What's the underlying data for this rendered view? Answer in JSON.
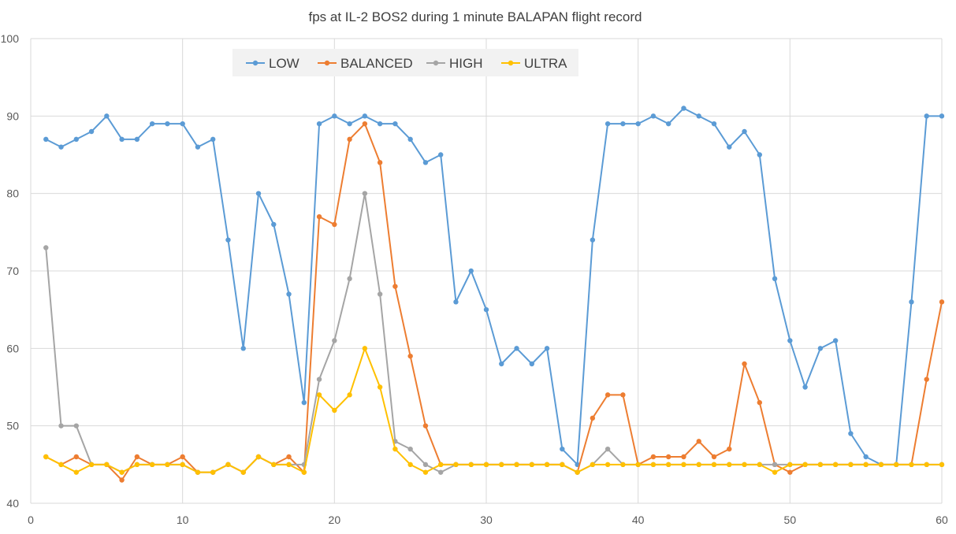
{
  "chart_data": {
    "type": "line",
    "title": "fps at IL-2 BOS2 during 1 minute BALAPAN flight record",
    "xlabel": "",
    "ylabel": "",
    "xlim": [
      0,
      60
    ],
    "ylim": [
      40,
      100
    ],
    "x_ticks": [
      "0",
      "10",
      "20",
      "30",
      "40",
      "50",
      "60"
    ],
    "y_ticks": [
      "40",
      "50",
      "60",
      "70",
      "80",
      "90",
      "100"
    ],
    "grid": true,
    "legend_position": "top-left",
    "x": [
      1,
      2,
      3,
      4,
      5,
      6,
      7,
      8,
      9,
      10,
      11,
      12,
      13,
      14,
      15,
      16,
      17,
      18,
      19,
      20,
      21,
      22,
      23,
      24,
      25,
      26,
      27,
      28,
      29,
      30,
      31,
      32,
      33,
      34,
      35,
      36,
      37,
      38,
      39,
      40,
      41,
      42,
      43,
      44,
      45,
      46,
      47,
      48,
      49,
      50,
      51,
      52,
      53,
      54,
      55,
      56,
      57,
      58,
      59,
      60
    ],
    "series": [
      {
        "name": "LOW",
        "color": "#5b9bd5",
        "values": [
          87,
          86,
          87,
          88,
          90,
          87,
          87,
          89,
          89,
          89,
          86,
          87,
          74,
          60,
          80,
          76,
          67,
          53,
          89,
          90,
          89,
          90,
          89,
          89,
          87,
          84,
          85,
          66,
          70,
          65,
          58,
          60,
          58,
          60,
          47,
          45,
          74,
          89,
          89,
          89,
          90,
          89,
          91,
          90,
          89,
          86,
          88,
          85,
          69,
          61,
          55,
          60,
          61,
          49,
          46,
          45,
          45,
          66,
          90,
          90
        ]
      },
      {
        "name": "BALANCED",
        "color": "#ed7d31",
        "values": [
          46,
          45,
          46,
          45,
          45,
          43,
          46,
          45,
          45,
          46,
          44,
          44,
          45,
          44,
          46,
          45,
          46,
          44,
          77,
          76,
          87,
          89,
          84,
          68,
          59,
          50,
          45,
          45,
          45,
          45,
          45,
          45,
          45,
          45,
          45,
          44,
          51,
          54,
          54,
          45,
          46,
          46,
          46,
          48,
          46,
          47,
          58,
          53,
          45,
          44,
          45,
          45,
          45,
          45,
          45,
          45,
          45,
          45,
          56,
          66
        ]
      },
      {
        "name": "HIGH",
        "color": "#a5a5a5",
        "values": [
          73,
          50,
          50,
          45,
          45,
          44,
          45,
          45,
          45,
          45,
          44,
          44,
          45,
          44,
          46,
          45,
          45,
          45,
          56,
          61,
          69,
          80,
          67,
          48,
          47,
          45,
          44,
          45,
          45,
          45,
          45,
          45,
          45,
          45,
          45,
          44,
          45,
          47,
          45,
          45,
          45,
          45,
          45,
          45,
          45,
          45,
          45,
          45,
          45,
          45,
          45,
          45,
          45,
          45,
          45,
          45,
          45,
          45,
          45,
          45
        ]
      },
      {
        "name": "ULTRA",
        "color": "#ffc000",
        "values": [
          46,
          45,
          44,
          45,
          45,
          44,
          45,
          45,
          45,
          45,
          44,
          44,
          45,
          44,
          46,
          45,
          45,
          44,
          54,
          52,
          54,
          60,
          55,
          47,
          45,
          44,
          45,
          45,
          45,
          45,
          45,
          45,
          45,
          45,
          45,
          44,
          45,
          45,
          45,
          45,
          45,
          45,
          45,
          45,
          45,
          45,
          45,
          45,
          44,
          45,
          45,
          45,
          45,
          45,
          45,
          45,
          45,
          45,
          45,
          45
        ]
      }
    ]
  }
}
